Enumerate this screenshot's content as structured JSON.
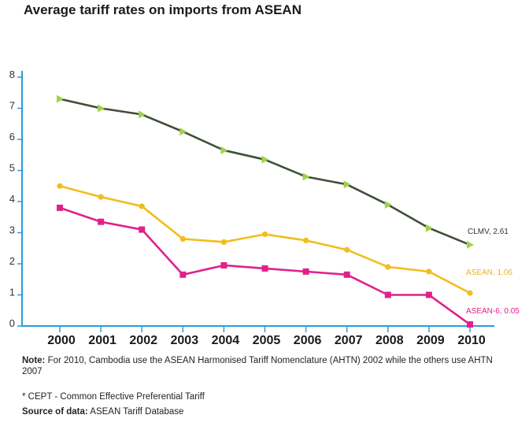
{
  "chart_data": {
    "type": "line",
    "title": "Average tariff rates on imports from ASEAN",
    "xlabel": "",
    "ylabel": "",
    "ylim": [
      0,
      8
    ],
    "yticks": [
      0,
      1,
      2,
      3,
      4,
      5,
      6,
      7,
      8
    ],
    "x": [
      "2000",
      "2001",
      "2002",
      "2003",
      "2004",
      "2005",
      "2006",
      "2007",
      "2008",
      "2009",
      "2010"
    ],
    "grid": false,
    "series": [
      {
        "name": "CLMV",
        "end_label": "CLMV, 2.61",
        "marker": "triangle",
        "color": "#3f4f37",
        "marker_color": "#9fd24a",
        "label_color": "#333333",
        "values": [
          7.3,
          7.0,
          6.8,
          6.25,
          5.65,
          5.35,
          4.8,
          4.55,
          3.9,
          3.15,
          2.61
        ]
      },
      {
        "name": "ASEAN",
        "end_label": "ASEAN, 1.06",
        "marker": "circle",
        "color": "#f2bd1c",
        "marker_color": "#f2bd1c",
        "label_color": "#e8b21c",
        "values": [
          4.5,
          4.15,
          3.85,
          2.8,
          2.7,
          2.95,
          2.75,
          2.45,
          1.9,
          1.75,
          1.06
        ]
      },
      {
        "name": "ASEAN-6",
        "end_label": "ASEAN-6, 0.05",
        "marker": "square",
        "color": "#e0218a",
        "marker_color": "#e0218a",
        "label_color": "#e0218a",
        "values": [
          3.8,
          3.35,
          3.1,
          1.65,
          1.95,
          1.85,
          1.75,
          1.65,
          1.0,
          1.0,
          0.05
        ]
      }
    ]
  },
  "notes": {
    "note_label": "Note:",
    "note_text": "For 2010, Cambodia use the ASEAN Harmonised Tariff Nomenclature (AHTN) 2002 while the others use AHTN 2007",
    "cept": "* CEPT - Common Effective Preferential Tariff",
    "source_label": "Source of data:",
    "source_text": "ASEAN Tariff Database"
  },
  "colors": {
    "axis": "#2a9fd8"
  }
}
